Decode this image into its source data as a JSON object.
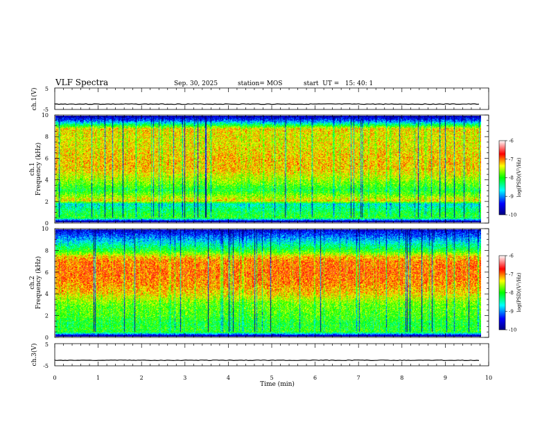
{
  "chart_data": {
    "type": "heatmap",
    "header": {
      "title": "VLF Spectra",
      "date": "Sep. 30, 2025",
      "station": "station= MOS",
      "start": "start  UT =   15: 40: 1"
    },
    "x_axis": {
      "label": "Time (min)",
      "range": [
        0,
        10
      ],
      "ticks": [
        "0",
        "1",
        "2",
        "3",
        "4",
        "5",
        "6",
        "7",
        "8",
        "9",
        "10"
      ]
    },
    "panels": [
      {
        "id": "ch1-voltage",
        "ylabel": "ch.1(V)",
        "ylim": [
          -5,
          5
        ],
        "yticks": [
          "5",
          "-5"
        ],
        "series": {
          "name": "ch.1 waveform",
          "level_V": -2.5,
          "data_until_min": 9.8
        }
      },
      {
        "id": "ch1-spectrogram",
        "ylabel_line1": "ch.1",
        "ylabel_line2": "Frequency (kHz)",
        "ylim": [
          0,
          10
        ],
        "yticks": [
          "0",
          "2",
          "4",
          "6",
          "8",
          "10"
        ],
        "data_until_min": 9.8,
        "colorbar": {
          "label": "log(PSD)(V²/Hz)",
          "range": [
            -10,
            -6
          ],
          "ticks": [
            "-6",
            "-7",
            "-8",
            "-9",
            "-10"
          ]
        },
        "intensity_profile_kHz": [
          [
            0,
            -10
          ],
          [
            0.4,
            -8
          ],
          [
            1.0,
            -8.2
          ],
          [
            1.7,
            -8.6
          ],
          [
            2.0,
            -7.3
          ],
          [
            3.0,
            -8.1
          ],
          [
            4.0,
            -7.6
          ],
          [
            5.0,
            -7.25
          ],
          [
            6.0,
            -7.25
          ],
          [
            7.0,
            -7.35
          ],
          [
            8.0,
            -7.4
          ],
          [
            8.8,
            -7.3
          ],
          [
            9.2,
            -8.3
          ],
          [
            9.6,
            -9.2
          ],
          [
            10,
            -9.8
          ]
        ]
      },
      {
        "id": "ch2-spectrogram",
        "ylabel_line1": "ch.2",
        "ylabel_line2": "Frequency (kHz)",
        "ylim": [
          0,
          10
        ],
        "yticks": [
          "0",
          "2",
          "4",
          "6",
          "8",
          "10"
        ],
        "data_until_min": 9.8,
        "colorbar": {
          "label": "log(PSD)(V²/Hz)",
          "range": [
            -10,
            -6
          ],
          "ticks": [
            "-6",
            "-7",
            "-8",
            "-9",
            "-10"
          ]
        },
        "intensity_profile_kHz": [
          [
            0,
            -10
          ],
          [
            0.4,
            -8
          ],
          [
            1.2,
            -8.1
          ],
          [
            2.0,
            -7.9
          ],
          [
            3.0,
            -7.8
          ],
          [
            4.0,
            -7.3
          ],
          [
            5.0,
            -7.05
          ],
          [
            6.0,
            -6.95
          ],
          [
            7.0,
            -7.0
          ],
          [
            7.5,
            -7.3
          ],
          [
            8.0,
            -8.0
          ],
          [
            9.0,
            -8.8
          ],
          [
            10,
            -9.6
          ]
        ]
      },
      {
        "id": "ch3-voltage",
        "ylabel": "ch.3(V)",
        "ylim": [
          -5,
          5
        ],
        "yticks": [
          "5",
          "-5"
        ],
        "series": {
          "name": "ch.3 waveform",
          "level_V": -2.5,
          "data_until_min": 9.8
        }
      }
    ],
    "colormap": [
      "#00007f",
      "#0000ff",
      "#00ffff",
      "#00ff00",
      "#ffff00",
      "#ff0000",
      "#ffffff"
    ]
  }
}
